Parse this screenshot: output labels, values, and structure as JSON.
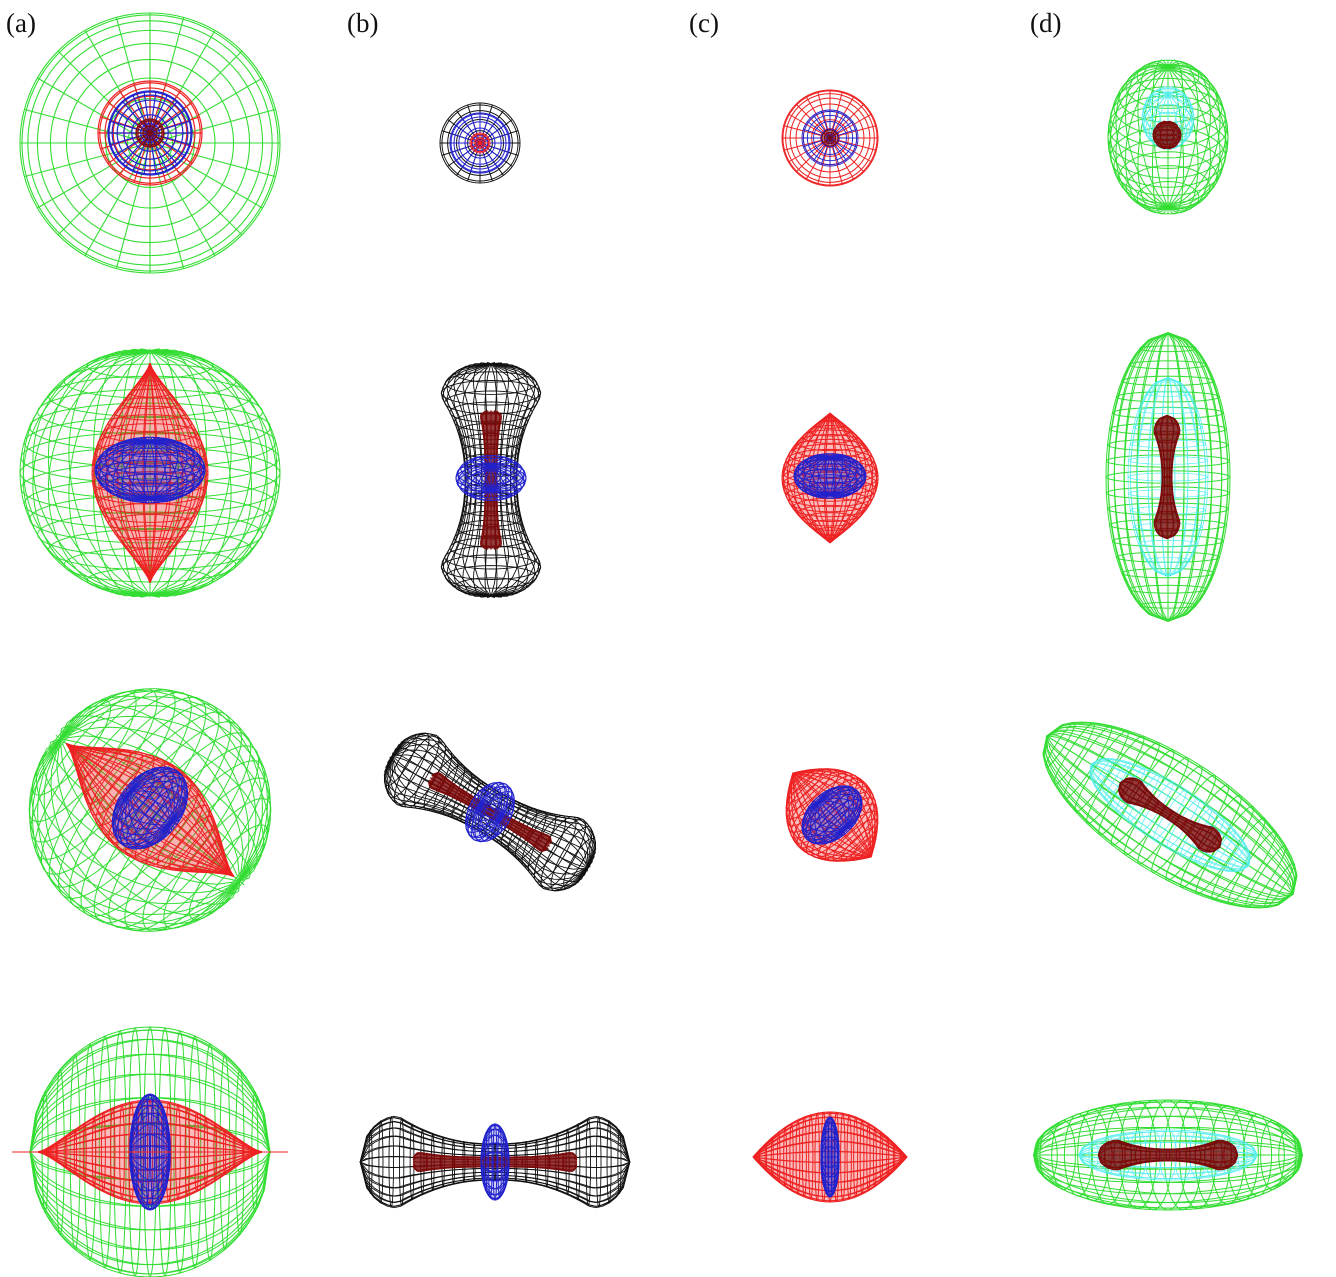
{
  "panels": {
    "labels": [
      "(a)",
      "(b)",
      "(c)",
      "(d)"
    ]
  },
  "colors": {
    "outer_green": "#33dd33",
    "cyan": "#55eeee",
    "red": "#ee2222",
    "dark_red": "#7a0a0a",
    "blue": "#2222cc",
    "light_blue": "#8888ff",
    "black": "#111111",
    "white": "#ffffff"
  }
}
